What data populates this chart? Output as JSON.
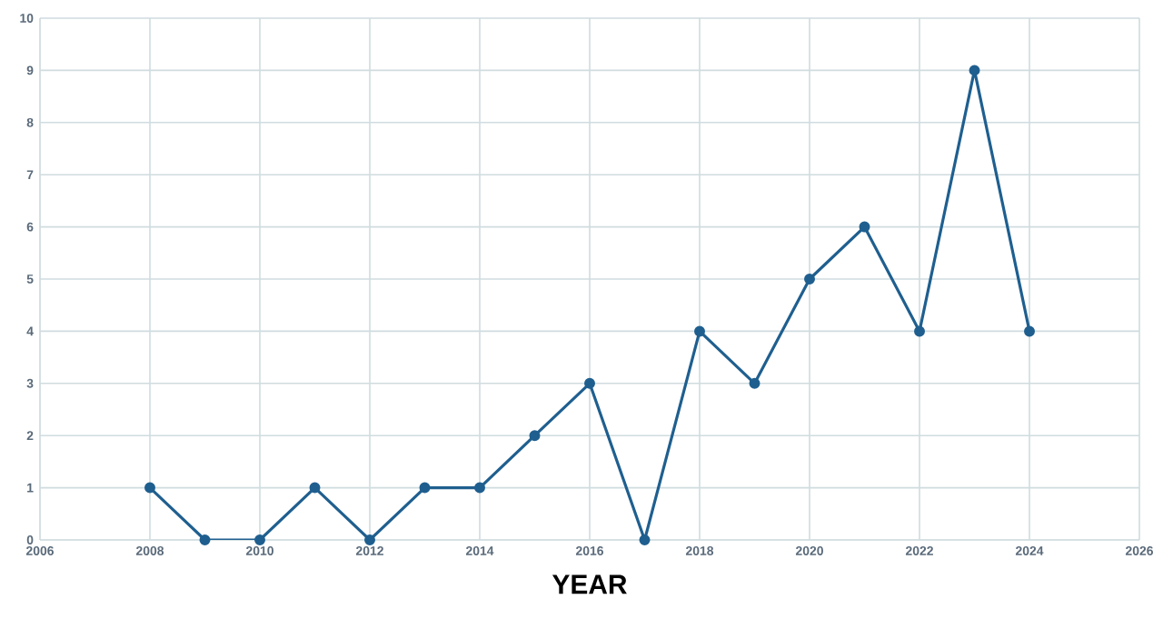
{
  "chart_data": {
    "type": "line",
    "xlabel": "YEAR",
    "x": [
      2008,
      2009,
      2010,
      2011,
      2012,
      2013,
      2014,
      2015,
      2016,
      2017,
      2018,
      2019,
      2020,
      2021,
      2022,
      2023,
      2024
    ],
    "values": [
      1,
      0,
      0,
      1,
      0,
      1,
      1,
      2,
      3,
      0,
      4,
      3,
      5,
      6,
      4,
      9,
      4
    ],
    "color": "#1f5f8f",
    "marker": "circle",
    "line_style": "solid",
    "grid": true,
    "xlim": [
      2006,
      2026
    ],
    "xticks": [
      2006,
      2008,
      2010,
      2012,
      2014,
      2016,
      2018,
      2020,
      2022,
      2024,
      2026
    ],
    "ylim": [
      0,
      10
    ],
    "yticks": [
      0,
      1,
      2,
      3,
      4,
      5,
      6,
      7,
      8,
      9,
      10
    ]
  }
}
